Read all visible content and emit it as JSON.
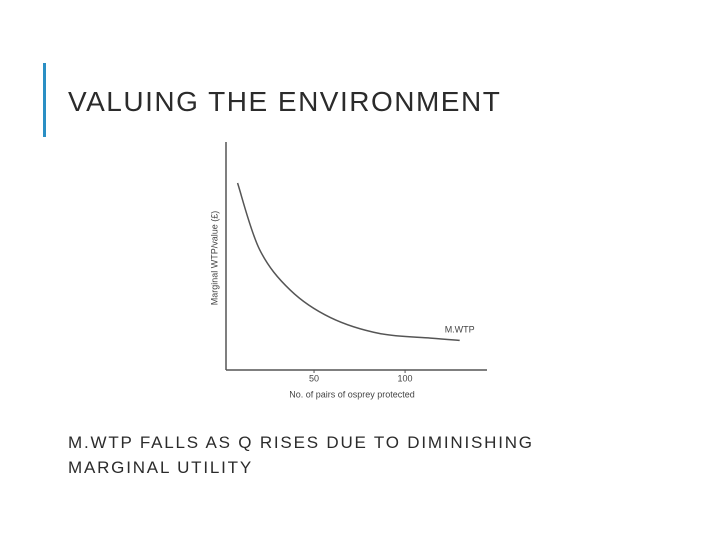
{
  "slide": {
    "title": "VALUING THE ENVIRONMENT",
    "caption": "M.WTP FALLS AS Q RISES DUE TO DIMINISHING MARGINAL UTILITY"
  },
  "chart_data": {
    "type": "line",
    "x_label": "No. of pairs of osprey protected",
    "y_label": "Marginal WTP/value (£)",
    "x": [
      8,
      20,
      37,
      59,
      86,
      114,
      130
    ],
    "series": [
      {
        "name": "M.WTP",
        "color": "#555555",
        "values": [
          82,
          53,
          35,
          23,
          16,
          14,
          13
        ]
      }
    ],
    "xlim": [
      0,
      145
    ],
    "xticks": [
      50,
      100
    ],
    "ylim": [
      0,
      100
    ]
  }
}
